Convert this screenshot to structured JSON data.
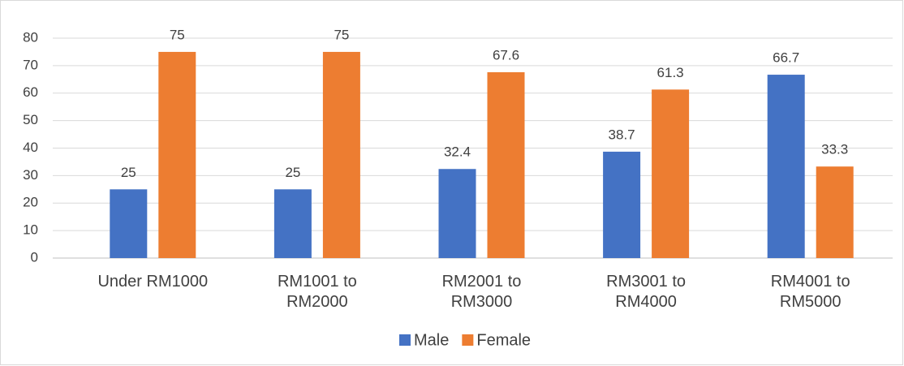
{
  "chart_data": {
    "type": "bar",
    "categories": [
      "Under RM1000",
      "RM1001 to RM2000",
      "RM2001 to RM3000",
      "RM3001 to RM4000",
      "RM4001 to RM5000"
    ],
    "series": [
      {
        "name": "Male",
        "color": "#4472c4",
        "values": [
          25,
          25,
          32.4,
          38.7,
          66.7
        ]
      },
      {
        "name": "Female",
        "color": "#ed7d31",
        "values": [
          75,
          75,
          67.6,
          61.3,
          33.3
        ]
      }
    ],
    "ylim": [
      0,
      80
    ],
    "yticks": [
      0,
      10,
      20,
      30,
      40,
      50,
      60,
      70,
      80
    ],
    "grid": true,
    "legend": "bottom"
  }
}
